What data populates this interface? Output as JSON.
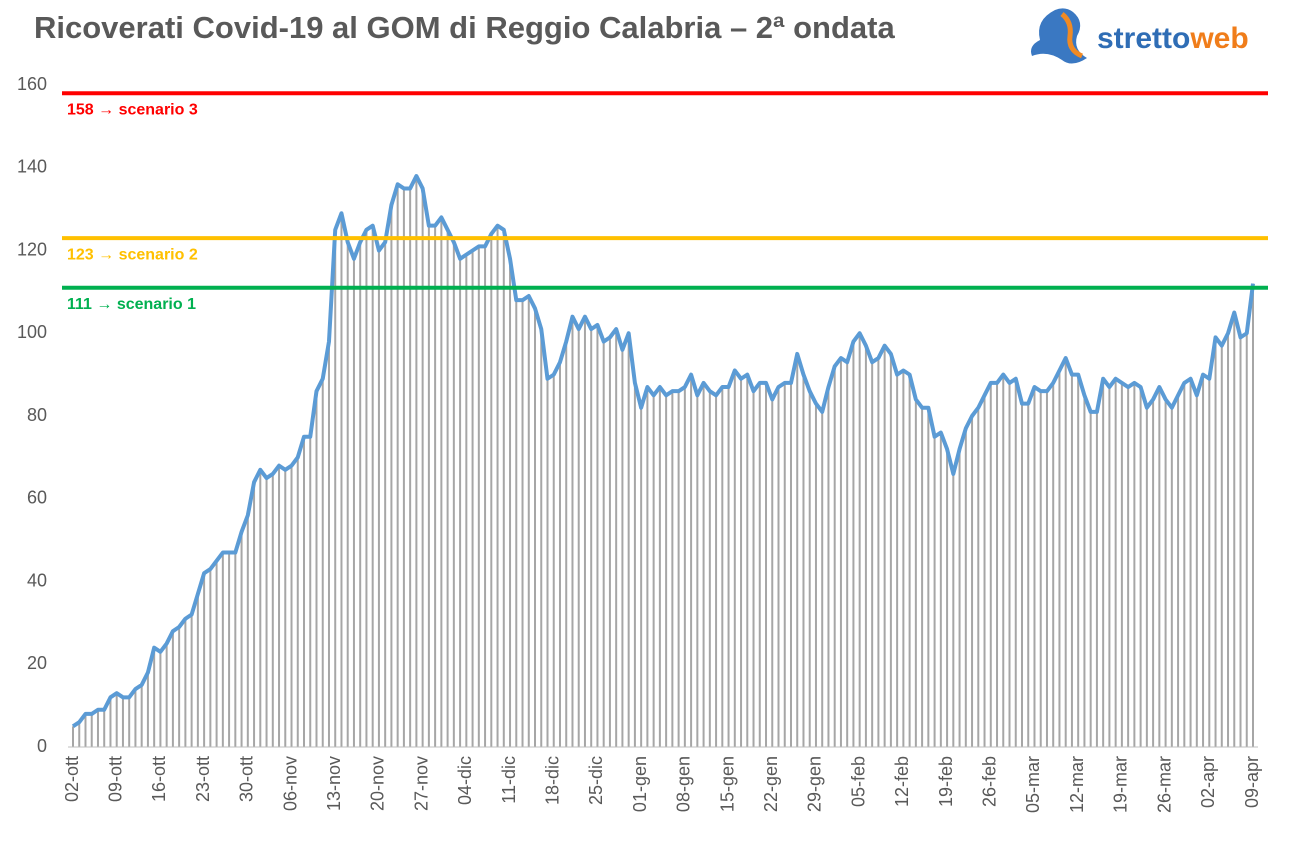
{
  "chart_data": {
    "type": "bar-line",
    "title": "Ricoverati Covid-19 al GOM di Reggio Calabria – 2ª ondata",
    "logo": [
      "stretto",
      "web"
    ],
    "categories": [
      "02-ott",
      null,
      null,
      null,
      null,
      null,
      null,
      "09-ott",
      null,
      null,
      null,
      null,
      null,
      null,
      "16-ott",
      null,
      null,
      null,
      null,
      null,
      null,
      "23-ott",
      null,
      null,
      null,
      null,
      null,
      null,
      "30-ott",
      null,
      null,
      null,
      null,
      null,
      null,
      "06-nov",
      null,
      null,
      null,
      null,
      null,
      null,
      "13-nov",
      null,
      null,
      null,
      null,
      null,
      null,
      "20-nov",
      null,
      null,
      null,
      null,
      null,
      null,
      "27-nov",
      null,
      null,
      null,
      null,
      null,
      null,
      "04-dic",
      null,
      null,
      null,
      null,
      null,
      null,
      "11-dic",
      null,
      null,
      null,
      null,
      null,
      null,
      "18-dic",
      null,
      null,
      null,
      null,
      null,
      null,
      "25-dic",
      null,
      null,
      null,
      null,
      null,
      null,
      "01-gen",
      null,
      null,
      null,
      null,
      null,
      null,
      "08-gen",
      null,
      null,
      null,
      null,
      null,
      null,
      "15-gen",
      null,
      null,
      null,
      null,
      null,
      null,
      "22-gen",
      null,
      null,
      null,
      null,
      null,
      null,
      "29-gen",
      null,
      null,
      null,
      null,
      null,
      null,
      "05-feb",
      null,
      null,
      null,
      null,
      null,
      null,
      "12-feb",
      null,
      null,
      null,
      null,
      null,
      null,
      "19-feb",
      null,
      null,
      null,
      null,
      null,
      null,
      "26-feb",
      null,
      null,
      null,
      null,
      null,
      null,
      "05-mar",
      null,
      null,
      null,
      null,
      null,
      null,
      "12-mar",
      null,
      null,
      null,
      null,
      null,
      null,
      "19-mar",
      null,
      null,
      null,
      null,
      null,
      null,
      "26-mar",
      null,
      null,
      null,
      null,
      null,
      null,
      "02-apr",
      null,
      null,
      null,
      null,
      null,
      null,
      "09-apr"
    ],
    "values": [
      5,
      6,
      8,
      8,
      9,
      9,
      12,
      13,
      12,
      12,
      14,
      15,
      18,
      24,
      23,
      25,
      28,
      29,
      31,
      32,
      37,
      42,
      43,
      45,
      47,
      47,
      47,
      52,
      56,
      64,
      67,
      65,
      66,
      68,
      67,
      68,
      70,
      75,
      75,
      86,
      89,
      98,
      125,
      129,
      122,
      118,
      122,
      125,
      126,
      120,
      122,
      131,
      136,
      135,
      135,
      138,
      135,
      126,
      126,
      128,
      125,
      122,
      118,
      119,
      120,
      121,
      121,
      124,
      126,
      125,
      118,
      108,
      108,
      109,
      106,
      101,
      89,
      90,
      93,
      98,
      104,
      101,
      104,
      101,
      102,
      98,
      99,
      101,
      96,
      100,
      88,
      82,
      87,
      85,
      87,
      85,
      86,
      86,
      87,
      90,
      85,
      88,
      86,
      85,
      87,
      87,
      91,
      89,
      90,
      86,
      88,
      88,
      84,
      87,
      88,
      88,
      95,
      90,
      86,
      83,
      81,
      87,
      92,
      94,
      93,
      98,
      100,
      97,
      93,
      94,
      97,
      95,
      90,
      91,
      90,
      84,
      82,
      82,
      75,
      76,
      72,
      66,
      72,
      77,
      80,
      82,
      85,
      88,
      88,
      90,
      88,
      89,
      83,
      83,
      87,
      86,
      86,
      88,
      91,
      94,
      90,
      90,
      85,
      81,
      81,
      89,
      87,
      89,
      88,
      87,
      88,
      87,
      82,
      84,
      87,
      84,
      82,
      85,
      88,
      89,
      85,
      90,
      89,
      99,
      97,
      100,
      105,
      99,
      100,
      112
    ],
    "bar_color": "#a6a6a6",
    "line_color": "#5b9bd5",
    "ylim": [
      0,
      160
    ],
    "yticks": [
      0,
      20,
      40,
      60,
      80,
      100,
      120,
      140,
      160
    ],
    "reference_lines": [
      {
        "value": 158,
        "label": "158 → scenario 3",
        "color": "#ff0000"
      },
      {
        "value": 123,
        "label": "123 → scenario 2",
        "color": "#ffc000"
      },
      {
        "value": 111,
        "label": "111 → scenario 1",
        "color": "#00b050"
      }
    ]
  }
}
